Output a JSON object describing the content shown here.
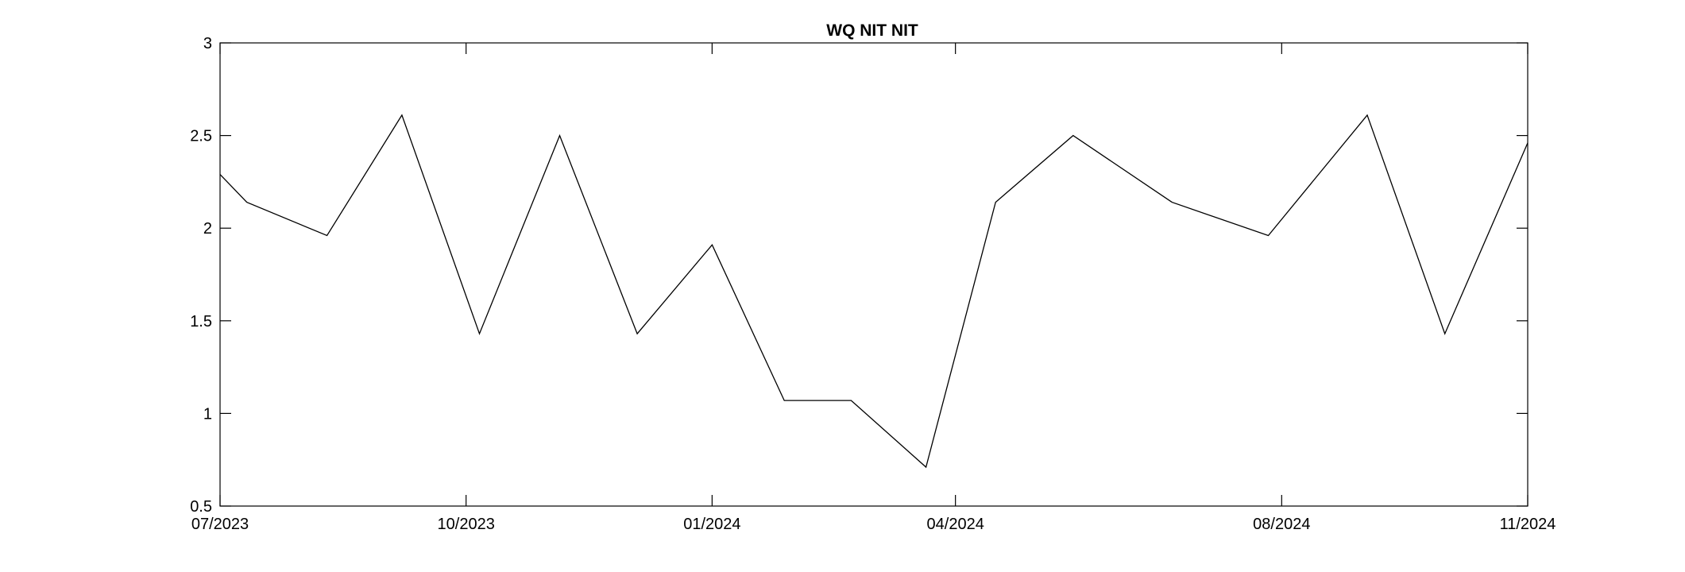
{
  "chart_data": {
    "type": "line",
    "title": "WQ NIT NIT",
    "xlabel": "",
    "ylabel": "",
    "x_axis_type": "date",
    "xlim": [
      "2023-07-01",
      "2024-11-01"
    ],
    "ylim": [
      0.5,
      3
    ],
    "grid": false,
    "legend": "none",
    "x_ticks": [
      {
        "date": "2023-07-01",
        "label": "07/2023"
      },
      {
        "date": "2023-10-01",
        "label": "10/2023"
      },
      {
        "date": "2024-01-01",
        "label": "01/2024"
      },
      {
        "date": "2024-04-01",
        "label": "04/2024"
      },
      {
        "date": "2024-08-01",
        "label": "08/2024"
      },
      {
        "date": "2024-11-01",
        "label": "11/2024"
      }
    ],
    "y_ticks": [
      {
        "value": 0.5,
        "label": "0.5"
      },
      {
        "value": 1,
        "label": "1"
      },
      {
        "value": 1.5,
        "label": "1.5"
      },
      {
        "value": 2,
        "label": "2"
      },
      {
        "value": 2.5,
        "label": "2.5"
      },
      {
        "value": 3,
        "label": "3"
      }
    ],
    "series": [
      {
        "color": "#000000",
        "x": [
          "2023-07-01",
          "2023-07-11",
          "2023-08-10",
          "2023-09-07",
          "2023-10-06",
          "2023-11-05",
          "2023-12-04",
          "2024-01-01",
          "2024-01-28",
          "2024-02-22",
          "2024-03-21",
          "2024-04-16",
          "2024-05-15",
          "2024-06-21",
          "2024-07-27",
          "2024-09-02",
          "2024-10-01",
          "2024-11-01"
        ],
        "y": [
          2.29,
          2.14,
          1.96,
          2.61,
          1.43,
          2.5,
          1.43,
          1.91,
          1.07,
          1.07,
          0.71,
          2.14,
          2.5,
          2.14,
          1.96,
          2.61,
          1.43,
          2.46
        ]
      }
    ]
  }
}
